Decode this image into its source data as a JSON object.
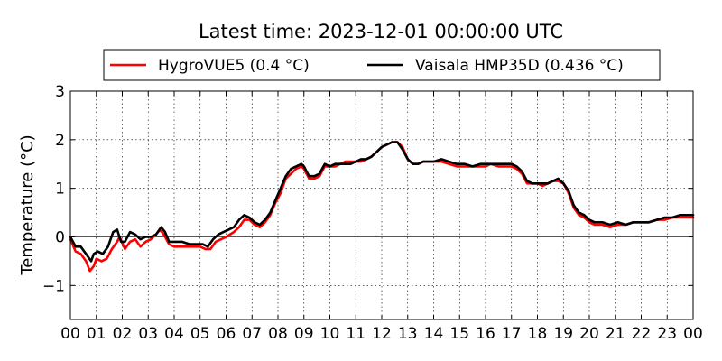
{
  "chart_data": {
    "type": "line",
    "title": "Latest time: 2023-12-01 00:00:00 UTC",
    "ylabel": "Temperature (°C)",
    "xlabel": "",
    "xlim": [
      0,
      24
    ],
    "ylim": [
      -1.7,
      3
    ],
    "x_ticks": [
      "00",
      "01",
      "02",
      "03",
      "04",
      "05",
      "06",
      "07",
      "08",
      "09",
      "10",
      "11",
      "12",
      "13",
      "14",
      "15",
      "16",
      "17",
      "18",
      "19",
      "20",
      "21",
      "22",
      "23",
      "00"
    ],
    "y_ticks": [
      {
        "value": -1,
        "label": "−1"
      },
      {
        "value": 0,
        "label": "0"
      },
      {
        "value": 1,
        "label": "1"
      },
      {
        "value": 2,
        "label": "2"
      },
      {
        "value": 3,
        "label": "3"
      }
    ],
    "grid": true,
    "zero_line": true,
    "legend_position": "top",
    "series": [
      {
        "name": "HygroVUE5 (0.4 °C)",
        "color": "#ff0000",
        "points": [
          [
            0,
            -0.05
          ],
          [
            0.2,
            -0.3
          ],
          [
            0.4,
            -0.35
          ],
          [
            0.6,
            -0.5
          ],
          [
            0.75,
            -0.7
          ],
          [
            0.9,
            -0.6
          ],
          [
            1.0,
            -0.45
          ],
          [
            1.2,
            -0.5
          ],
          [
            1.4,
            -0.45
          ],
          [
            1.6,
            -0.25
          ],
          [
            1.8,
            -0.1
          ],
          [
            1.9,
            0.0
          ],
          [
            2.1,
            -0.25
          ],
          [
            2.3,
            -0.1
          ],
          [
            2.5,
            -0.05
          ],
          [
            2.7,
            -0.2
          ],
          [
            2.9,
            -0.1
          ],
          [
            3.1,
            -0.05
          ],
          [
            3.3,
            0.05
          ],
          [
            3.45,
            0.15
          ],
          [
            3.6,
            0.05
          ],
          [
            3.8,
            -0.15
          ],
          [
            4.0,
            -0.2
          ],
          [
            4.3,
            -0.2
          ],
          [
            4.6,
            -0.2
          ],
          [
            4.8,
            -0.2
          ],
          [
            5.0,
            -0.2
          ],
          [
            5.2,
            -0.25
          ],
          [
            5.4,
            -0.25
          ],
          [
            5.6,
            -0.1
          ],
          [
            5.8,
            -0.05
          ],
          [
            6.0,
            0.0
          ],
          [
            6.3,
            0.1
          ],
          [
            6.5,
            0.2
          ],
          [
            6.7,
            0.35
          ],
          [
            6.9,
            0.35
          ],
          [
            7.1,
            0.25
          ],
          [
            7.3,
            0.2
          ],
          [
            7.5,
            0.3
          ],
          [
            7.7,
            0.45
          ],
          [
            7.9,
            0.7
          ],
          [
            8.1,
            0.9
          ],
          [
            8.3,
            1.2
          ],
          [
            8.5,
            1.3
          ],
          [
            8.7,
            1.4
          ],
          [
            8.9,
            1.45
          ],
          [
            9.0,
            1.4
          ],
          [
            9.1,
            1.3
          ],
          [
            9.2,
            1.2
          ],
          [
            9.4,
            1.2
          ],
          [
            9.6,
            1.25
          ],
          [
            9.8,
            1.45
          ],
          [
            10.0,
            1.45
          ],
          [
            10.2,
            1.45
          ],
          [
            10.4,
            1.5
          ],
          [
            10.6,
            1.55
          ],
          [
            10.8,
            1.55
          ],
          [
            11.0,
            1.55
          ],
          [
            11.2,
            1.55
          ],
          [
            11.4,
            1.6
          ],
          [
            11.6,
            1.65
          ],
          [
            11.8,
            1.75
          ],
          [
            12.0,
            1.85
          ],
          [
            12.2,
            1.9
          ],
          [
            12.4,
            1.95
          ],
          [
            12.6,
            1.95
          ],
          [
            12.8,
            1.85
          ],
          [
            13.0,
            1.6
          ],
          [
            13.2,
            1.5
          ],
          [
            13.4,
            1.5
          ],
          [
            13.6,
            1.55
          ],
          [
            14.0,
            1.55
          ],
          [
            14.3,
            1.55
          ],
          [
            14.6,
            1.5
          ],
          [
            14.9,
            1.45
          ],
          [
            15.2,
            1.45
          ],
          [
            15.5,
            1.45
          ],
          [
            15.8,
            1.45
          ],
          [
            16.0,
            1.45
          ],
          [
            16.2,
            1.5
          ],
          [
            16.5,
            1.45
          ],
          [
            16.8,
            1.45
          ],
          [
            17.0,
            1.45
          ],
          [
            17.2,
            1.4
          ],
          [
            17.4,
            1.3
          ],
          [
            17.6,
            1.1
          ],
          [
            17.8,
            1.1
          ],
          [
            18.0,
            1.1
          ],
          [
            18.2,
            1.05
          ],
          [
            18.4,
            1.1
          ],
          [
            18.6,
            1.15
          ],
          [
            18.8,
            1.15
          ],
          [
            19.0,
            1.1
          ],
          [
            19.2,
            0.9
          ],
          [
            19.4,
            0.6
          ],
          [
            19.6,
            0.45
          ],
          [
            19.8,
            0.4
          ],
          [
            20.0,
            0.3
          ],
          [
            20.2,
            0.25
          ],
          [
            20.5,
            0.25
          ],
          [
            20.8,
            0.2
          ],
          [
            21.1,
            0.25
          ],
          [
            21.4,
            0.25
          ],
          [
            21.7,
            0.3
          ],
          [
            22.0,
            0.3
          ],
          [
            22.3,
            0.3
          ],
          [
            22.6,
            0.35
          ],
          [
            22.9,
            0.35
          ],
          [
            23.2,
            0.4
          ],
          [
            23.5,
            0.4
          ],
          [
            24,
            0.4
          ]
        ]
      },
      {
        "name": "Vaisala HMP35D (0.436 °C)",
        "color": "#000000",
        "points": [
          [
            0,
            0.0
          ],
          [
            0.2,
            -0.2
          ],
          [
            0.4,
            -0.2
          ],
          [
            0.6,
            -0.35
          ],
          [
            0.8,
            -0.5
          ],
          [
            0.9,
            -0.35
          ],
          [
            1.05,
            -0.3
          ],
          [
            1.25,
            -0.35
          ],
          [
            1.45,
            -0.2
          ],
          [
            1.65,
            0.1
          ],
          [
            1.8,
            0.15
          ],
          [
            1.95,
            -0.1
          ],
          [
            2.1,
            -0.1
          ],
          [
            2.3,
            0.1
          ],
          [
            2.5,
            0.05
          ],
          [
            2.7,
            -0.05
          ],
          [
            2.9,
            0.0
          ],
          [
            3.1,
            0.0
          ],
          [
            3.3,
            0.05
          ],
          [
            3.5,
            0.2
          ],
          [
            3.65,
            0.1
          ],
          [
            3.8,
            -0.1
          ],
          [
            4.0,
            -0.1
          ],
          [
            4.3,
            -0.1
          ],
          [
            4.6,
            -0.15
          ],
          [
            4.9,
            -0.15
          ],
          [
            5.1,
            -0.15
          ],
          [
            5.3,
            -0.2
          ],
          [
            5.5,
            -0.05
          ],
          [
            5.7,
            0.05
          ],
          [
            5.9,
            0.1
          ],
          [
            6.1,
            0.15
          ],
          [
            6.3,
            0.2
          ],
          [
            6.5,
            0.35
          ],
          [
            6.7,
            0.45
          ],
          [
            6.9,
            0.4
          ],
          [
            7.1,
            0.3
          ],
          [
            7.3,
            0.25
          ],
          [
            7.5,
            0.35
          ],
          [
            7.7,
            0.5
          ],
          [
            7.9,
            0.75
          ],
          [
            8.1,
            1.0
          ],
          [
            8.3,
            1.25
          ],
          [
            8.5,
            1.4
          ],
          [
            8.7,
            1.45
          ],
          [
            8.9,
            1.5
          ],
          [
            9.0,
            1.45
          ],
          [
            9.1,
            1.35
          ],
          [
            9.2,
            1.25
          ],
          [
            9.4,
            1.25
          ],
          [
            9.6,
            1.3
          ],
          [
            9.8,
            1.5
          ],
          [
            10.0,
            1.45
          ],
          [
            10.2,
            1.5
          ],
          [
            10.4,
            1.5
          ],
          [
            10.6,
            1.5
          ],
          [
            10.8,
            1.5
          ],
          [
            11.0,
            1.55
          ],
          [
            11.2,
            1.6
          ],
          [
            11.4,
            1.6
          ],
          [
            11.6,
            1.65
          ],
          [
            11.8,
            1.75
          ],
          [
            12.0,
            1.85
          ],
          [
            12.2,
            1.9
          ],
          [
            12.4,
            1.95
          ],
          [
            12.6,
            1.95
          ],
          [
            12.8,
            1.8
          ],
          [
            13.0,
            1.6
          ],
          [
            13.2,
            1.5
          ],
          [
            13.4,
            1.5
          ],
          [
            13.6,
            1.55
          ],
          [
            14.0,
            1.55
          ],
          [
            14.3,
            1.6
          ],
          [
            14.6,
            1.55
          ],
          [
            14.9,
            1.5
          ],
          [
            15.2,
            1.5
          ],
          [
            15.5,
            1.45
          ],
          [
            15.8,
            1.5
          ],
          [
            16.0,
            1.5
          ],
          [
            16.2,
            1.5
          ],
          [
            16.5,
            1.5
          ],
          [
            16.8,
            1.5
          ],
          [
            17.0,
            1.5
          ],
          [
            17.2,
            1.45
          ],
          [
            17.4,
            1.35
          ],
          [
            17.6,
            1.15
          ],
          [
            17.8,
            1.1
          ],
          [
            18.0,
            1.1
          ],
          [
            18.2,
            1.1
          ],
          [
            18.4,
            1.1
          ],
          [
            18.6,
            1.15
          ],
          [
            18.8,
            1.2
          ],
          [
            19.0,
            1.1
          ],
          [
            19.2,
            0.95
          ],
          [
            19.4,
            0.65
          ],
          [
            19.6,
            0.5
          ],
          [
            19.8,
            0.45
          ],
          [
            20.0,
            0.35
          ],
          [
            20.2,
            0.3
          ],
          [
            20.5,
            0.3
          ],
          [
            20.8,
            0.25
          ],
          [
            21.1,
            0.3
          ],
          [
            21.4,
            0.25
          ],
          [
            21.7,
            0.3
          ],
          [
            22.0,
            0.3
          ],
          [
            22.3,
            0.3
          ],
          [
            22.6,
            0.35
          ],
          [
            22.9,
            0.4
          ],
          [
            23.2,
            0.4
          ],
          [
            23.5,
            0.45
          ],
          [
            24,
            0.45
          ]
        ]
      }
    ]
  }
}
